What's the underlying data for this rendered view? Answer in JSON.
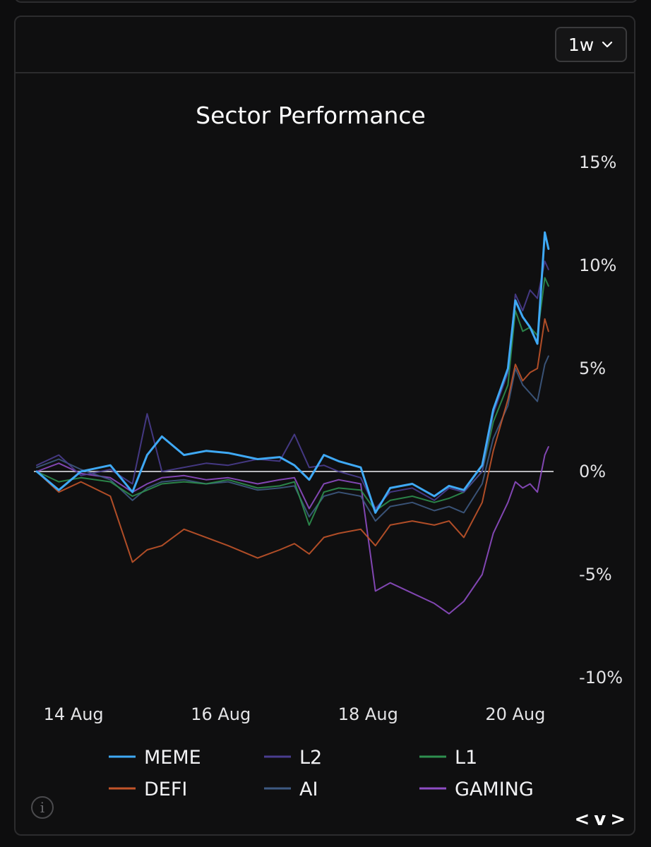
{
  "header": {
    "timeframe_value": "1w",
    "dropdown_icon": "chevron-down-icon"
  },
  "footer": {
    "info_icon": "info-icon",
    "nav_prev": "<",
    "nav_toggle": "v",
    "nav_next": ">"
  },
  "colors": {
    "background": "#0d0d0e",
    "zero_line": "#b8b8bc",
    "MEME": "#3fa9f5",
    "L2": "#4a3d8f",
    "L1": "#2e8f4f",
    "DEFI": "#c2542a",
    "AI": "#3e5a82",
    "GAMING": "#8e4dc4"
  },
  "chart_data": {
    "type": "line",
    "title": "Sector Performance",
    "x_ticks": [
      "14 Aug",
      "16 Aug",
      "18 Aug",
      "20 Aug"
    ],
    "x_tick_days": [
      14,
      16,
      18,
      20
    ],
    "x_range": [
      13.5,
      20.5
    ],
    "y_ticks": [
      "15%",
      "10%",
      "5%",
      "0%",
      "-5%",
      "-10%"
    ],
    "y_tick_values": [
      15,
      10,
      5,
      0,
      -5,
      -10
    ],
    "ylim": [
      -10,
      15
    ],
    "zero_line": true,
    "grid": false,
    "legend_position": "bottom",
    "series": [
      {
        "name": "MEME",
        "x": [
          13.5,
          13.8,
          14.1,
          14.5,
          14.8,
          15.0,
          15.2,
          15.5,
          15.8,
          16.1,
          16.5,
          16.8,
          17.0,
          17.2,
          17.4,
          17.6,
          17.9,
          18.1,
          18.3,
          18.6,
          18.9,
          19.1,
          19.3,
          19.55,
          19.7,
          19.9,
          20.0,
          20.1,
          20.2,
          20.3,
          20.4,
          20.45
        ],
        "values": [
          0.0,
          -0.9,
          0.0,
          0.3,
          -1.0,
          0.8,
          1.7,
          0.8,
          1.0,
          0.9,
          0.6,
          0.7,
          0.3,
          -0.4,
          0.8,
          0.5,
          0.2,
          -2.0,
          -0.8,
          -0.6,
          -1.2,
          -0.7,
          -0.9,
          0.3,
          3.0,
          5.0,
          8.3,
          7.5,
          7.0,
          6.2,
          11.6,
          10.8
        ]
      },
      {
        "name": "L2",
        "x": [
          13.5,
          13.8,
          14.1,
          14.5,
          14.8,
          15.0,
          15.2,
          15.5,
          15.8,
          16.1,
          16.5,
          16.8,
          17.0,
          17.2,
          17.4,
          17.6,
          17.9,
          18.1,
          18.3,
          18.6,
          18.9,
          19.1,
          19.3,
          19.55,
          19.7,
          19.9,
          20.0,
          20.1,
          20.2,
          20.3,
          20.4,
          20.45
        ],
        "values": [
          0.3,
          0.8,
          -0.2,
          0.1,
          -0.6,
          2.8,
          0.0,
          0.2,
          0.4,
          0.3,
          0.6,
          0.5,
          1.8,
          0.2,
          0.3,
          0.0,
          -0.3,
          -1.8,
          -1.0,
          -0.8,
          -1.4,
          -0.8,
          -1.0,
          0.0,
          2.8,
          4.8,
          8.6,
          7.8,
          8.8,
          8.4,
          10.2,
          9.8
        ]
      },
      {
        "name": "L1",
        "x": [
          13.5,
          13.8,
          14.1,
          14.5,
          14.8,
          15.0,
          15.2,
          15.5,
          15.8,
          16.1,
          16.5,
          16.8,
          17.0,
          17.2,
          17.4,
          17.6,
          17.9,
          18.1,
          18.3,
          18.6,
          18.9,
          19.1,
          19.3,
          19.55,
          19.7,
          19.9,
          20.0,
          20.1,
          20.2,
          20.3,
          20.4,
          20.45
        ],
        "values": [
          0.0,
          -0.5,
          -0.3,
          -0.5,
          -1.2,
          -0.9,
          -0.6,
          -0.5,
          -0.6,
          -0.4,
          -0.8,
          -0.7,
          -0.5,
          -2.6,
          -1.0,
          -0.8,
          -0.9,
          -1.9,
          -1.4,
          -1.2,
          -1.5,
          -1.3,
          -1.0,
          0.0,
          2.4,
          4.2,
          7.8,
          6.8,
          7.0,
          6.6,
          9.4,
          9.0
        ]
      },
      {
        "name": "DEFI",
        "x": [
          13.5,
          13.8,
          14.1,
          14.5,
          14.8,
          15.0,
          15.2,
          15.5,
          15.8,
          16.1,
          16.5,
          16.8,
          17.0,
          17.2,
          17.4,
          17.6,
          17.9,
          18.1,
          18.3,
          18.6,
          18.9,
          19.1,
          19.3,
          19.55,
          19.7,
          19.9,
          20.0,
          20.1,
          20.2,
          20.3,
          20.4,
          20.45
        ],
        "values": [
          0.0,
          -1.0,
          -0.5,
          -1.2,
          -4.4,
          -3.8,
          -3.6,
          -2.8,
          -3.2,
          -3.6,
          -4.2,
          -3.8,
          -3.5,
          -4.0,
          -3.2,
          -3.0,
          -2.8,
          -3.6,
          -2.6,
          -2.4,
          -2.6,
          -2.4,
          -3.2,
          -1.5,
          1.0,
          3.5,
          5.2,
          4.4,
          4.8,
          5.0,
          7.4,
          6.8
        ]
      },
      {
        "name": "AI",
        "x": [
          13.5,
          13.8,
          14.1,
          14.5,
          14.8,
          15.0,
          15.2,
          15.5,
          15.8,
          16.1,
          16.5,
          16.8,
          17.0,
          17.2,
          17.4,
          17.6,
          17.9,
          18.1,
          18.3,
          18.6,
          18.9,
          19.1,
          19.3,
          19.55,
          19.7,
          19.9,
          20.0,
          20.1,
          20.2,
          20.3,
          20.4,
          20.45
        ],
        "values": [
          0.2,
          0.6,
          0.1,
          -0.4,
          -1.4,
          -0.8,
          -0.5,
          -0.4,
          -0.6,
          -0.5,
          -0.9,
          -0.8,
          -0.7,
          -2.2,
          -1.2,
          -1.0,
          -1.2,
          -2.4,
          -1.7,
          -1.5,
          -1.9,
          -1.7,
          -2.0,
          -0.6,
          1.6,
          3.2,
          5.0,
          4.2,
          3.8,
          3.4,
          5.2,
          5.6
        ]
      },
      {
        "name": "GAMING",
        "x": [
          13.5,
          13.8,
          14.1,
          14.5,
          14.8,
          15.0,
          15.2,
          15.5,
          15.8,
          16.1,
          16.5,
          16.8,
          17.0,
          17.2,
          17.4,
          17.6,
          17.9,
          18.1,
          18.3,
          18.6,
          18.9,
          19.1,
          19.3,
          19.55,
          19.7,
          19.9,
          20.0,
          20.1,
          20.2,
          20.3,
          20.4,
          20.45
        ],
        "values": [
          0.0,
          0.4,
          -0.1,
          -0.3,
          -1.0,
          -0.6,
          -0.3,
          -0.2,
          -0.4,
          -0.3,
          -0.6,
          -0.4,
          -0.3,
          -1.8,
          -0.6,
          -0.4,
          -0.6,
          -5.8,
          -5.4,
          -5.9,
          -6.4,
          -6.9,
          -6.3,
          -5.0,
          -3.0,
          -1.5,
          -0.5,
          -0.8,
          -0.6,
          -1.0,
          0.8,
          1.2
        ]
      }
    ]
  }
}
